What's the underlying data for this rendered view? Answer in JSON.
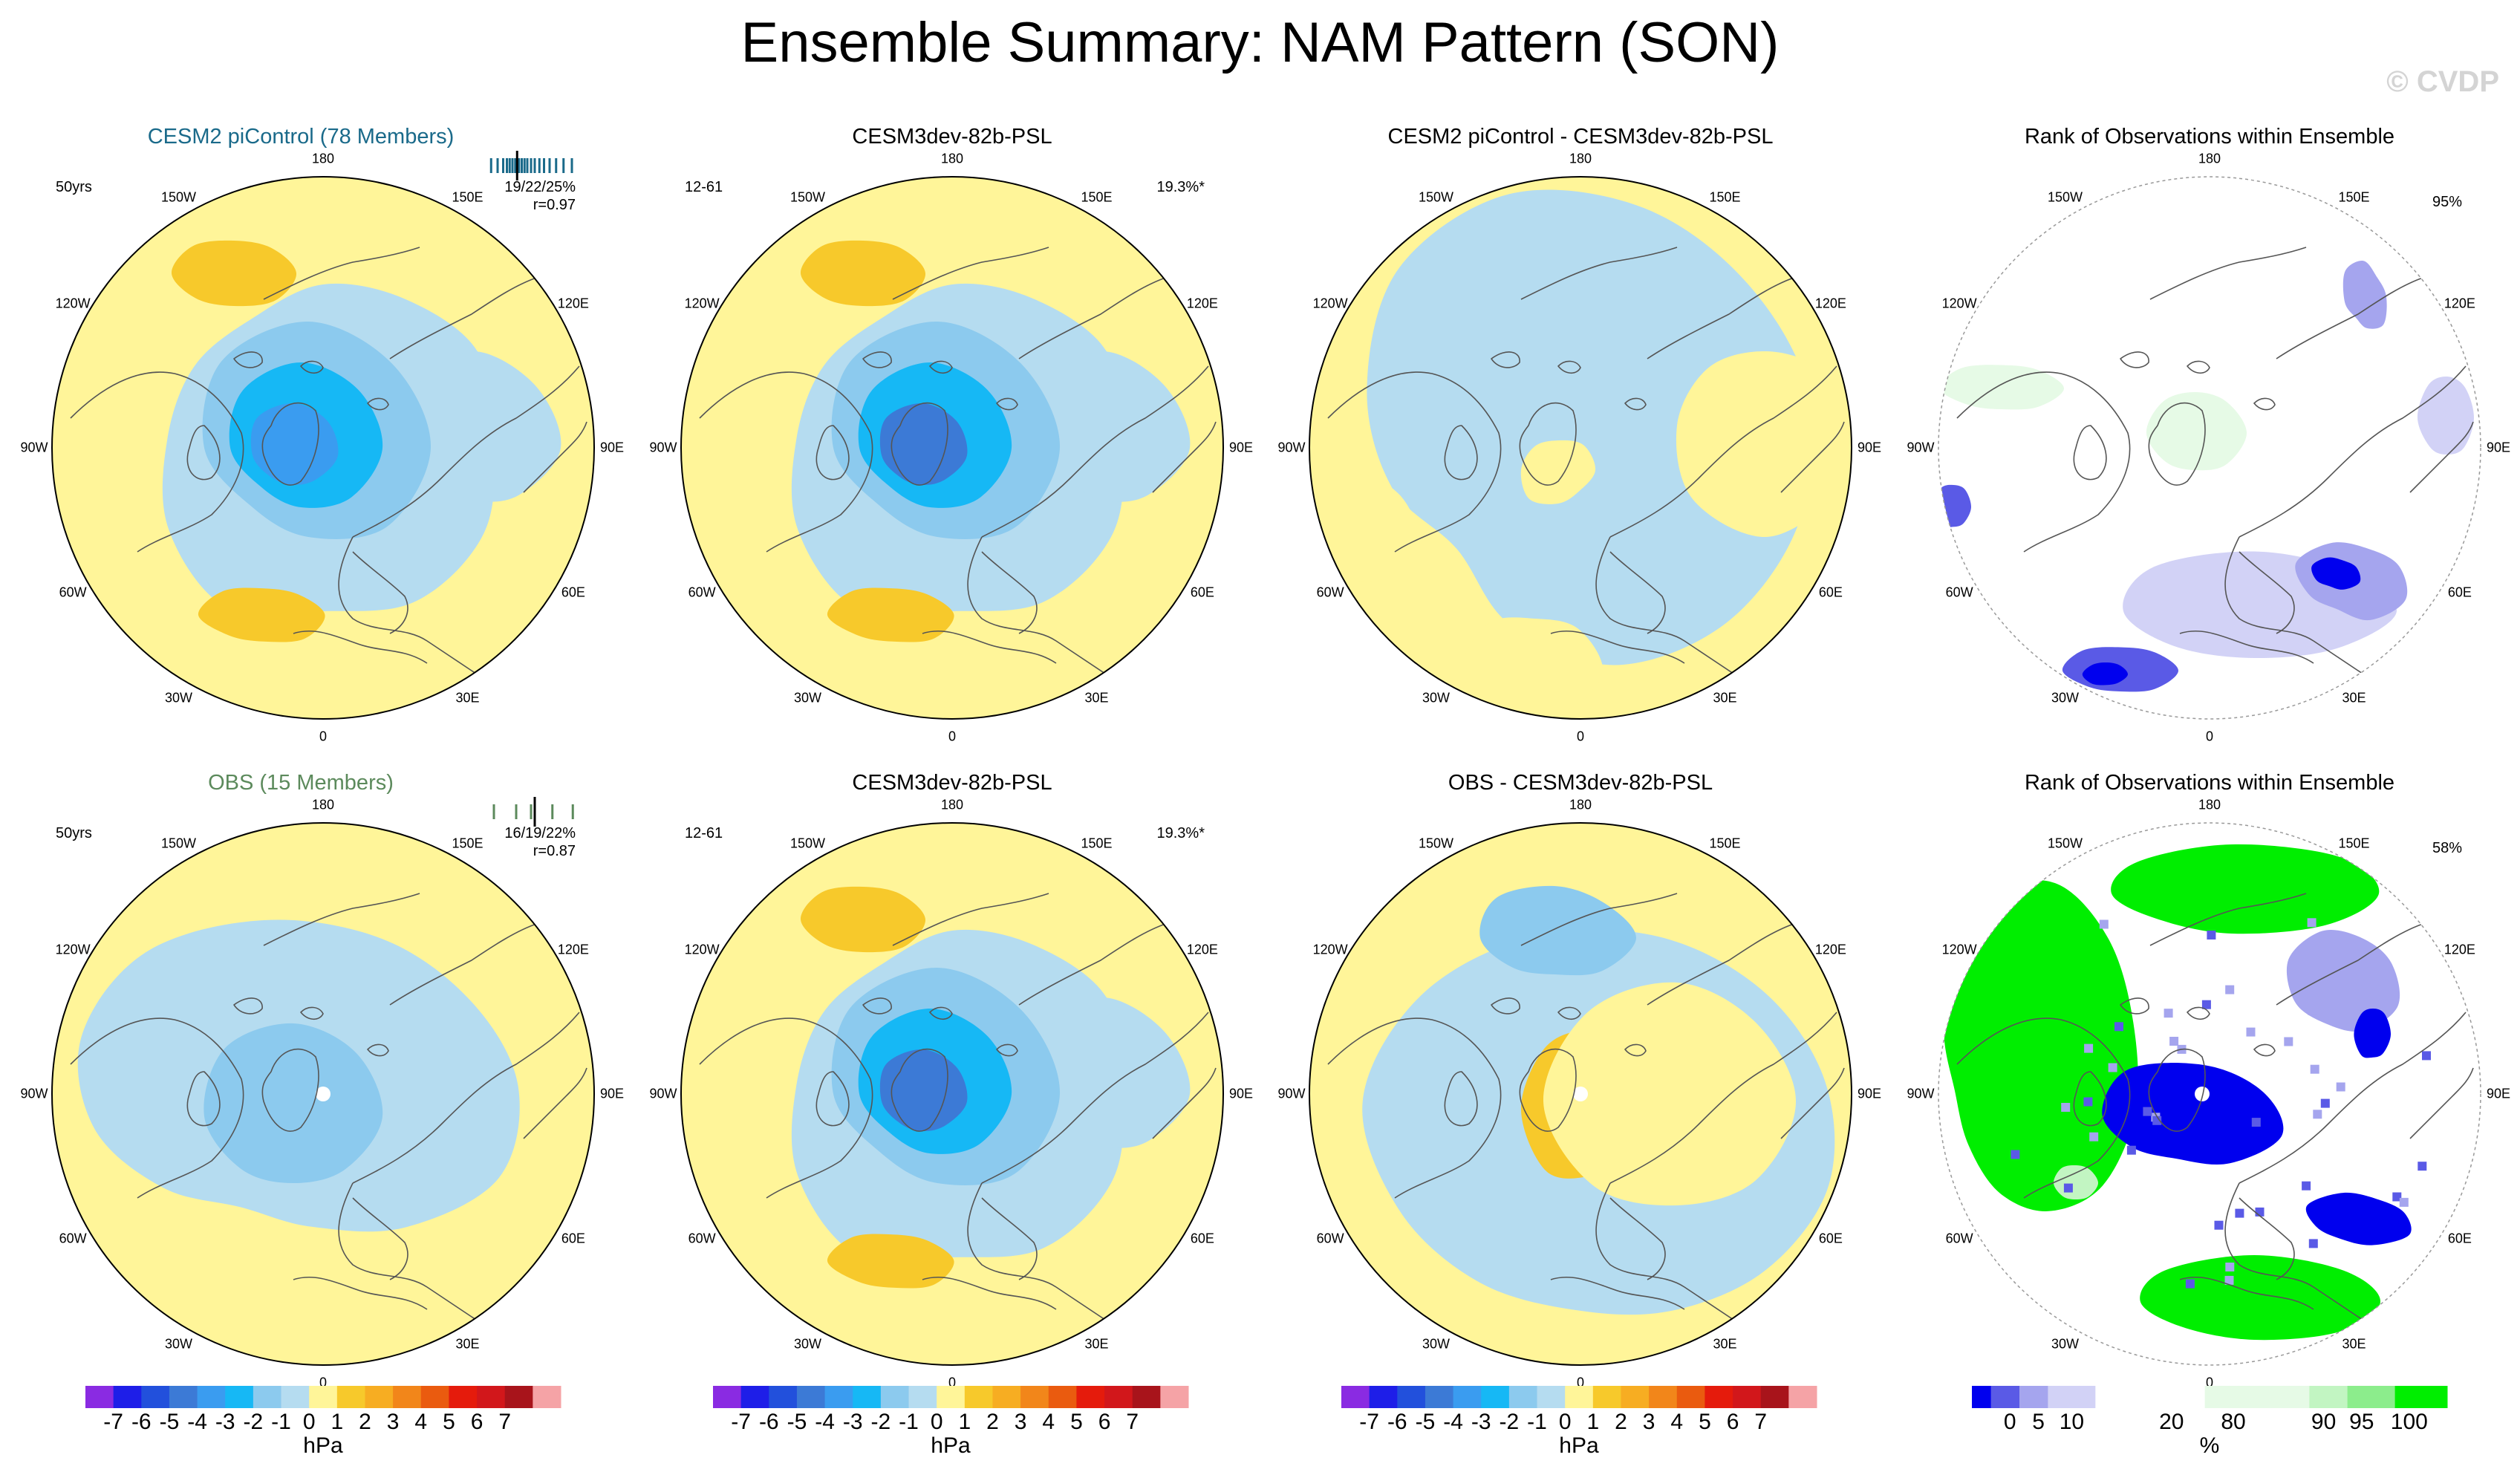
{
  "header": {
    "title": "Ensemble Summary: NAM Pattern (SON)",
    "watermark": "© CVDP"
  },
  "longitude_labels": [
    "180",
    "150E",
    "120E",
    "90E",
    "60E",
    "30E",
    "0",
    "30W",
    "60W",
    "90W",
    "120W",
    "150W"
  ],
  "colors": {
    "pattern": [
      "#8a2be2",
      "#1e1ee8",
      "#2250dc",
      "#3c7ad6",
      "#3a9cf0",
      "#16b8f5",
      "#8ccaee",
      "#b5dcf0",
      "#fff599",
      "#f7c92b",
      "#f7ad22",
      "#f2861a",
      "#ea5b0f",
      "#e51b0c",
      "#d2171b",
      "#a8141b",
      "#f5a3a6"
    ],
    "rank": [
      "#0000ee",
      "#5a5ae6",
      "#a5a5ee",
      "#d2d2f6",
      "#ebebfb",
      "#ffffff",
      "#e6fae6",
      "#c2f5c2",
      "#8ced8c",
      "#00ee00"
    ],
    "cesm2_title": "#1a6a8a",
    "obs_title": "#5c8a5c"
  },
  "chart_data": [
    {
      "type": "polar-map",
      "panel": "top-1",
      "title": "CESM2 piControl (78 Members)",
      "left_annotation": "50yrs",
      "right_annotation_1": "19/22/25%",
      "right_annotation_2": "r=0.97",
      "member_ticks": [
        0.05,
        0.12,
        0.18,
        0.22,
        0.25,
        0.28,
        0.31,
        0.35,
        0.38,
        0.41,
        0.44,
        0.48,
        0.52,
        0.57,
        0.62,
        0.68,
        0.75,
        0.83,
        0.92
      ],
      "member_marker": 0.33
    },
    {
      "type": "polar-map",
      "panel": "top-2",
      "title": "CESM3dev-82b-PSL",
      "left_annotation": "12-61",
      "right_annotation_1": "19.3%*"
    },
    {
      "type": "polar-map",
      "panel": "top-3",
      "title": "CESM2 piControl - CESM3dev-82b-PSL"
    },
    {
      "type": "polar-map",
      "panel": "top-4",
      "title": "Rank of Observations within Ensemble",
      "right_annotation_1": "95%"
    },
    {
      "type": "polar-map",
      "panel": "bottom-1",
      "title": "OBS (15 Members)",
      "left_annotation": "50yrs",
      "right_annotation_1": "16/19/22%",
      "right_annotation_2": "r=0.87",
      "member_ticks": [
        0.08,
        0.32,
        0.48,
        0.52,
        0.71,
        0.93
      ],
      "member_marker": 0.52
    },
    {
      "type": "polar-map",
      "panel": "bottom-2",
      "title": "CESM3dev-82b-PSL",
      "left_annotation": "12-61",
      "right_annotation_1": "19.3%*"
    },
    {
      "type": "polar-map",
      "panel": "bottom-3",
      "title": "OBS - CESM3dev-82b-PSL"
    },
    {
      "type": "polar-map",
      "panel": "bottom-4",
      "title": "Rank of Observations within Ensemble",
      "right_annotation_1": "58%"
    }
  ],
  "colorbars": {
    "pattern": {
      "labels": [
        "-7",
        "-6",
        "-5",
        "-4",
        "-3",
        "-2",
        "-1",
        "0",
        "1",
        "2",
        "3",
        "4",
        "5",
        "6",
        "7"
      ],
      "unit": "hPa"
    },
    "rank": {
      "labels": [
        "0",
        "5",
        "10",
        "20",
        "80",
        "90",
        "95",
        "100"
      ],
      "unit": "%"
    }
  }
}
